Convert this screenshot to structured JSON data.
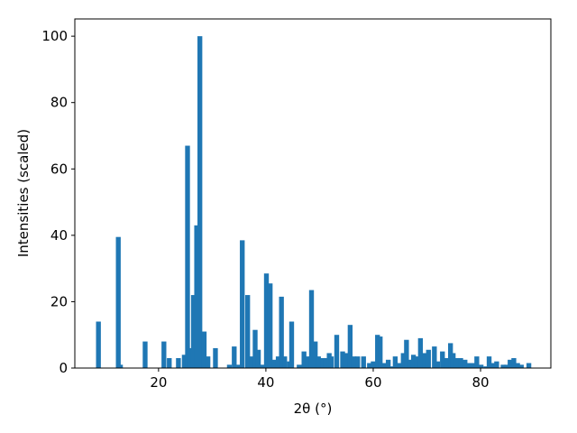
{
  "chart_data": {
    "type": "bar",
    "x_label": "2θ (°)",
    "y_label": "Intensities (scaled)",
    "color": "#1f77b4",
    "x": [
      8.8,
      12.5,
      12.9,
      17.5,
      21,
      22,
      23.7,
      24.8,
      25.4,
      26,
      26.5,
      27.1,
      27.7,
      28.5,
      29.2,
      30.6,
      33.2,
      34.1,
      35,
      35.6,
      36.6,
      37.4,
      38,
      38.6,
      39.3,
      40.1,
      40.8,
      41.5,
      42.3,
      42.9,
      43.5,
      44.4,
      44.8,
      46.2,
      47.1,
      47.7,
      48.5,
      49.2,
      49.8,
      50.6,
      51.2,
      51.8,
      52.2,
      53.2,
      54.3,
      54.9,
      55.7,
      56.4,
      57.1,
      58.2,
      59.3,
      60,
      60.8,
      61.3,
      62,
      62.8,
      63.5,
      64.1,
      64.9,
      65.6,
      66.2,
      66.9,
      67.5,
      68.1,
      68.8,
      69.6,
      70.3,
      71.4,
      72,
      72.9,
      73.6,
      74.4,
      74.9,
      75.5,
      76.3,
      77.1,
      77.8,
      78.5,
      79.3,
      80.1,
      81,
      81.6,
      82.3,
      83,
      84.2,
      84.9,
      85.5,
      86.2,
      86.9,
      87.6,
      89
    ],
    "values": [
      14,
      39.5,
      1,
      8,
      8,
      3,
      3,
      4,
      67,
      6,
      22,
      43,
      100,
      11,
      3.5,
      6,
      1,
      6.5,
      1,
      38.5,
      22,
      3.5,
      11.5,
      5.5,
      1,
      28.5,
      25.5,
      2.5,
      3.5,
      21.5,
      3.5,
      2,
      14,
      1,
      5,
      3.5,
      23.5,
      8,
      3.5,
      3,
      3,
      4.5,
      3.5,
      10,
      5,
      4.5,
      13,
      3.5,
      3.5,
      3.5,
      1.5,
      2,
      10,
      9.5,
      1.5,
      2.5,
      0.5,
      3.5,
      1.5,
      4.5,
      8.5,
      2.5,
      4,
      3.5,
      9,
      4.5,
      5.5,
      6.5,
      2,
      5,
      3,
      7.5,
      4.5,
      3,
      3,
      2.5,
      1.5,
      1.5,
      3.5,
      1,
      0.5,
      3.5,
      1.5,
      2,
      1,
      1,
      2.5,
      3,
      1.5,
      1,
      1.5
    ],
    "xlim": [
      4.4,
      93.1
    ],
    "ylim": [
      0,
      105.2
    ],
    "xticks": [
      20,
      40,
      60,
      80
    ],
    "yticks": [
      0,
      20,
      40,
      60,
      80,
      100
    ]
  }
}
